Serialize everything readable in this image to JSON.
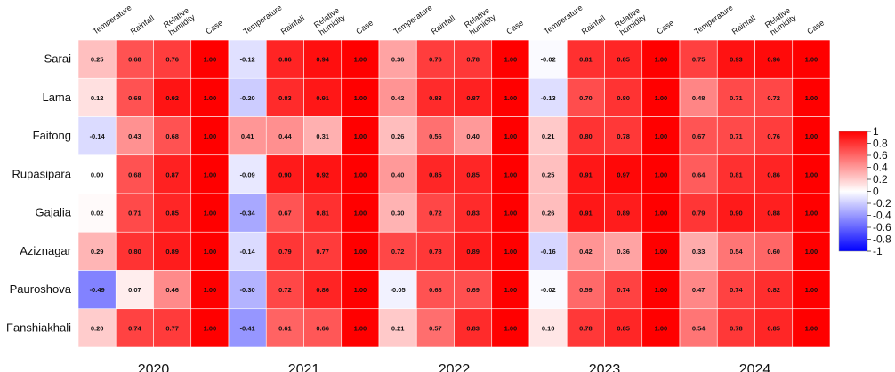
{
  "chart_data": {
    "type": "heatmap",
    "rows": [
      "Sarai",
      "Lama",
      "Faitong",
      "Rupasipara",
      "Gajalia",
      "Aziznagar",
      "Pauroshova",
      "Fanshiakhali"
    ],
    "groups": [
      {
        "label": "2020",
        "columns": [
          "Temperature",
          "Rainfall",
          "Relative humidity",
          "Case"
        ],
        "values": [
          [
            0.25,
            0.68,
            0.76,
            1.0
          ],
          [
            0.12,
            0.68,
            0.92,
            1.0
          ],
          [
            -0.14,
            0.43,
            0.68,
            1.0
          ],
          [
            0.0,
            0.68,
            0.87,
            1.0
          ],
          [
            0.02,
            0.71,
            0.85,
            1.0
          ],
          [
            0.29,
            0.8,
            0.89,
            1.0
          ],
          [
            -0.49,
            0.07,
            0.46,
            1.0
          ],
          [
            0.2,
            0.74,
            0.77,
            1.0
          ]
        ]
      },
      {
        "label": "2021",
        "columns": [
          "Temperature",
          "Rainfall",
          "Relative humidity",
          "Case"
        ],
        "values": [
          [
            -0.12,
            0.86,
            0.94,
            1.0
          ],
          [
            -0.2,
            0.83,
            0.91,
            1.0
          ],
          [
            0.41,
            0.44,
            0.31,
            1.0
          ],
          [
            -0.09,
            0.9,
            0.92,
            1.0
          ],
          [
            -0.34,
            0.67,
            0.81,
            1.0
          ],
          [
            -0.14,
            0.79,
            0.77,
            1.0
          ],
          [
            -0.3,
            0.72,
            0.86,
            1.0
          ],
          [
            -0.41,
            0.61,
            0.66,
            1.0
          ]
        ]
      },
      {
        "label": "2022",
        "columns": [
          "Temperature",
          "Rainfall",
          "Relative humidity",
          "Case"
        ],
        "values": [
          [
            0.36,
            0.76,
            0.78,
            1.0
          ],
          [
            0.42,
            0.83,
            0.87,
            1.0
          ],
          [
            0.26,
            0.56,
            0.4,
            1.0
          ],
          [
            0.4,
            0.85,
            0.85,
            1.0
          ],
          [
            0.3,
            0.72,
            0.83,
            1.0
          ],
          [
            0.72,
            0.78,
            0.89,
            1.0
          ],
          [
            -0.05,
            0.68,
            0.69,
            1.0
          ],
          [
            0.21,
            0.57,
            0.83,
            1.0
          ]
        ]
      },
      {
        "label": "2023",
        "columns": [
          "Temperature",
          "Rainfall",
          "Relative humidity",
          "Case"
        ],
        "values": [
          [
            -0.02,
            0.81,
            0.85,
            1.0
          ],
          [
            -0.13,
            0.7,
            0.8,
            1.0
          ],
          [
            0.21,
            0.8,
            0.78,
            1.0
          ],
          [
            0.25,
            0.91,
            0.97,
            1.0
          ],
          [
            0.26,
            0.91,
            0.89,
            1.0
          ],
          [
            -0.16,
            0.42,
            0.36,
            1.0
          ],
          [
            -0.02,
            0.59,
            0.74,
            1.0
          ],
          [
            0.1,
            0.78,
            0.85,
            1.0
          ]
        ]
      },
      {
        "label": "2024",
        "columns": [
          "Temperature",
          "Rainfall",
          "Relative humidity",
          "Case"
        ],
        "values": [
          [
            0.75,
            0.93,
            0.96,
            1.0
          ],
          [
            0.48,
            0.71,
            0.72,
            1.0
          ],
          [
            0.67,
            0.71,
            0.76,
            1.0
          ],
          [
            0.64,
            0.81,
            0.86,
            1.0
          ],
          [
            0.79,
            0.9,
            0.88,
            1.0
          ],
          [
            0.33,
            0.54,
            0.6,
            1.0
          ],
          [
            0.47,
            0.74,
            0.82,
            1.0
          ],
          [
            0.54,
            0.78,
            0.85,
            1.0
          ]
        ]
      }
    ],
    "value_format_decimals": 2,
    "colorscale": {
      "min": -1,
      "max": 1,
      "colors": {
        "low": "#0000ff",
        "mid": "#ffffff",
        "high": "#ff0000"
      },
      "ticks": [
        "1",
        "0.8",
        "0.6",
        "0.4",
        "0.2",
        "0",
        "-0.2",
        "-0.4",
        "-0.6",
        "-0.8",
        "-1"
      ]
    },
    "legend": "right"
  }
}
